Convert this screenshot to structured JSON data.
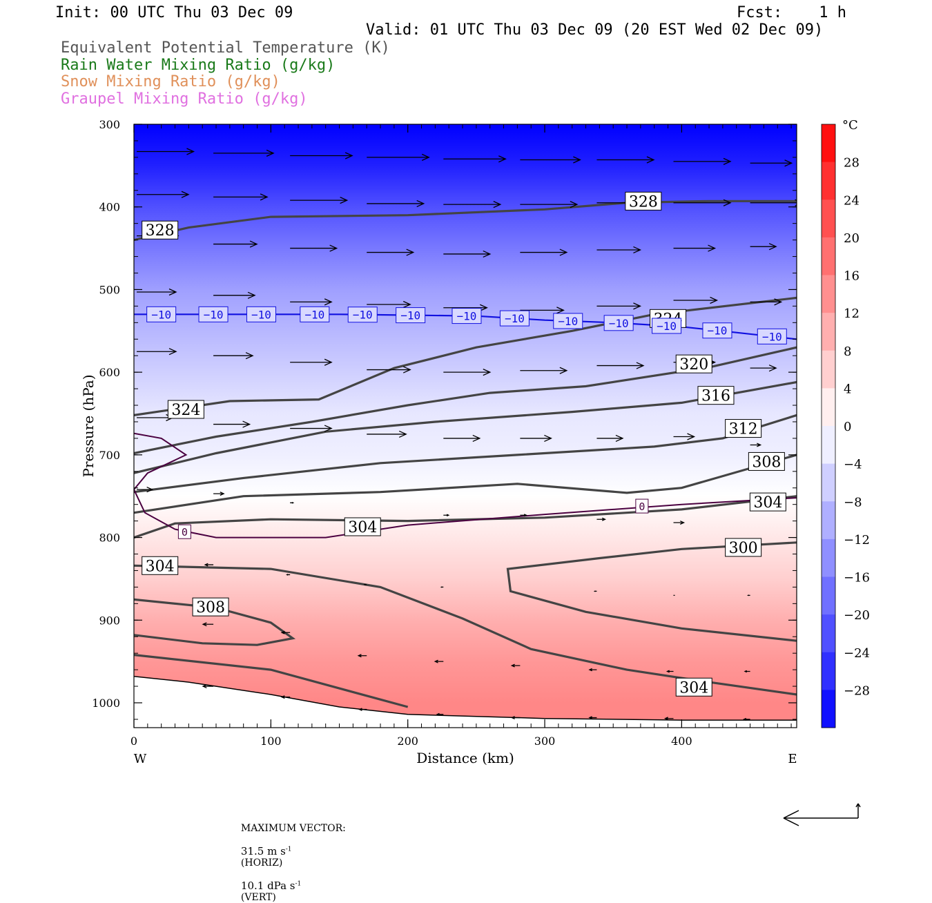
{
  "header": {
    "init": "Init: 00 UTC Thu 03 Dec 09",
    "fcst": "Fcst:    1 h",
    "valid": "Valid: 01 UTC Thu 03 Dec 09 (20 EST Wed 02 Dec 09)"
  },
  "legend": [
    {
      "label": "Equivalent Potential Temperature (K)",
      "color": "#555555"
    },
    {
      "label": "Rain Water Mixing Ratio (g/kg)",
      "color": "#1a7a1a"
    },
    {
      "label": "Snow Mixing Ratio (g/kg)",
      "color": "#e0905a"
    },
    {
      "label": "Graupel Mixing Ratio (g/kg)",
      "color": "#e070e0"
    }
  ],
  "chart_data": {
    "type": "cross-section",
    "xlabel": "Distance (km)",
    "ylabel": "Pressure (hPa)",
    "xlim": [
      0,
      484
    ],
    "ylim": [
      1030,
      300
    ],
    "x_ticks": [
      0,
      100,
      200,
      300,
      400
    ],
    "y_ticks": [
      300,
      400,
      500,
      600,
      700,
      800,
      900,
      1000
    ],
    "x_ends": {
      "left": "W",
      "right": "E"
    },
    "colorbar": {
      "unit": "°C",
      "range": [
        -32,
        32
      ],
      "labels": [
        28,
        24,
        20,
        16,
        12,
        8,
        4,
        0,
        -4,
        -8,
        -12,
        -16,
        -20,
        -24,
        -28
      ]
    },
    "temperature_field_profile": [
      {
        "p": 300,
        "t": -32
      },
      {
        "p": 350,
        "t": -28
      },
      {
        "p": 400,
        "t": -22
      },
      {
        "p": 450,
        "t": -17
      },
      {
        "p": 500,
        "t": -12
      },
      {
        "p": 550,
        "t": -9
      },
      {
        "p": 600,
        "t": -6
      },
      {
        "p": 650,
        "t": -3
      },
      {
        "p": 700,
        "t": -2
      },
      {
        "p": 750,
        "t": 0
      },
      {
        "p": 800,
        "t": 3
      },
      {
        "p": 850,
        "t": 6
      },
      {
        "p": 900,
        "t": 10
      },
      {
        "p": 950,
        "t": 13
      },
      {
        "p": 1000,
        "t": 15
      }
    ],
    "theta_e_contours": [
      {
        "value": 328,
        "points": [
          [
            0,
            440
          ],
          [
            40,
            425
          ],
          [
            100,
            412
          ],
          [
            200,
            410
          ],
          [
            300,
            403
          ],
          [
            360,
            395
          ],
          [
            420,
            393
          ],
          [
            484,
            393
          ]
        ]
      },
      {
        "value": 324,
        "points": [
          [
            0,
            652
          ],
          [
            70,
            635
          ],
          [
            135,
            633
          ],
          [
            190,
            595
          ],
          [
            250,
            570
          ],
          [
            320,
            550
          ],
          [
            380,
            530
          ],
          [
            484,
            510
          ]
        ]
      },
      {
        "value": 320,
        "points": [
          [
            0,
            698
          ],
          [
            60,
            678
          ],
          [
            130,
            660
          ],
          [
            200,
            640
          ],
          [
            260,
            625
          ],
          [
            330,
            617
          ],
          [
            420,
            594
          ],
          [
            484,
            570
          ]
        ]
      },
      {
        "value": 316,
        "points": [
          [
            0,
            722
          ],
          [
            60,
            698
          ],
          [
            140,
            672
          ],
          [
            220,
            660
          ],
          [
            320,
            648
          ],
          [
            400,
            637
          ],
          [
            484,
            612
          ]
        ]
      },
      {
        "value": 312,
        "points": [
          [
            0,
            745
          ],
          [
            80,
            728
          ],
          [
            180,
            710
          ],
          [
            280,
            700
          ],
          [
            380,
            690
          ],
          [
            430,
            680
          ],
          [
            484,
            652
          ]
        ]
      },
      {
        "value": 308,
        "points": [
          [
            0,
            770
          ],
          [
            80,
            750
          ],
          [
            180,
            745
          ],
          [
            280,
            735
          ],
          [
            360,
            746
          ],
          [
            400,
            740
          ],
          [
            484,
            700
          ]
        ]
      },
      {
        "value": 304,
        "points": [
          [
            0,
            800
          ],
          [
            30,
            783
          ],
          [
            100,
            778
          ],
          [
            200,
            780
          ],
          [
            300,
            776
          ],
          [
            400,
            766
          ],
          [
            484,
            750
          ]
        ]
      },
      {
        "value": 304,
        "points": [
          [
            0,
            834
          ],
          [
            100,
            838
          ],
          [
            180,
            860
          ],
          [
            240,
            898
          ],
          [
            290,
            935
          ],
          [
            360,
            960
          ],
          [
            420,
            975
          ],
          [
            484,
            990
          ]
        ]
      },
      {
        "value": 300,
        "points": [
          [
            484,
            806
          ],
          [
            400,
            814
          ],
          [
            340,
            825
          ],
          [
            273,
            838
          ],
          [
            275,
            865
          ],
          [
            330,
            890
          ],
          [
            400,
            910
          ],
          [
            484,
            925
          ]
        ]
      },
      {
        "value": 308,
        "points": [
          [
            0,
            875
          ],
          [
            60,
            885
          ],
          [
            100,
            903
          ],
          [
            116,
            922
          ],
          [
            90,
            930
          ],
          [
            50,
            928
          ],
          [
            0,
            918
          ]
        ]
      },
      {
        "value": 312,
        "points": [
          [
            0,
            942
          ],
          [
            100,
            960
          ],
          [
            200,
            1005
          ]
        ]
      }
    ],
    "theta_e_labels": [
      {
        "text": "328",
        "x": 19,
        "p": 428
      },
      {
        "text": "328",
        "x": 372,
        "p": 393
      },
      {
        "text": "324",
        "x": 38,
        "p": 645
      },
      {
        "text": "324",
        "x": 390,
        "p": 535
      },
      {
        "text": "320",
        "x": 409,
        "p": 590
      },
      {
        "text": "316",
        "x": 425,
        "p": 628
      },
      {
        "text": "312",
        "x": 445,
        "p": 668
      },
      {
        "text": "308",
        "x": 462,
        "p": 708
      },
      {
        "text": "304",
        "x": 463,
        "p": 757
      },
      {
        "text": "304",
        "x": 167,
        "p": 787
      },
      {
        "text": "304",
        "x": 19,
        "p": 834
      },
      {
        "text": "308",
        "x": 56,
        "p": 884
      },
      {
        "text": "300",
        "x": 445,
        "p": 812
      },
      {
        "text": "304",
        "x": 409,
        "p": 981
      }
    ],
    "isotherm_minus10": {
      "value": -10,
      "points": [
        [
          0,
          530
        ],
        [
          150,
          530
        ],
        [
          250,
          532
        ],
        [
          300,
          537
        ],
        [
          350,
          540
        ],
        [
          400,
          545
        ],
        [
          440,
          552
        ],
        [
          484,
          560
        ]
      ],
      "labels": [
        20,
        58,
        93,
        132,
        167,
        202,
        243,
        278,
        317,
        354,
        389,
        426,
        466
      ]
    },
    "isotherm_zero": {
      "value": 0,
      "points": [
        [
          0,
          742
        ],
        [
          10,
          722
        ],
        [
          38,
          700
        ],
        [
          20,
          680
        ],
        [
          0,
          674
        ]
      ],
      "points2": [
        [
          0,
          742
        ],
        [
          8,
          770
        ],
        [
          30,
          790
        ],
        [
          60,
          800
        ],
        [
          140,
          800
        ],
        [
          200,
          785
        ],
        [
          300,
          772
        ],
        [
          400,
          760
        ],
        [
          484,
          752
        ]
      ],
      "labels": [
        {
          "x": 37,
          "p": 793
        },
        {
          "x": 371,
          "p": 762
        }
      ]
    },
    "surface_line": [
      [
        0,
        968
      ],
      [
        40,
        975
      ],
      [
        100,
        990
      ],
      [
        150,
        1005
      ],
      [
        200,
        1014
      ],
      [
        300,
        1019
      ],
      [
        400,
        1021
      ],
      [
        484,
        1021
      ]
    ],
    "vectors": [
      {
        "x": 0,
        "p": 333,
        "u": 55,
        "w": 0
      },
      {
        "x": 56,
        "p": 335,
        "u": 58,
        "w": 0
      },
      {
        "x": 112,
        "p": 338,
        "u": 60,
        "w": 0
      },
      {
        "x": 168,
        "p": 340,
        "u": 60,
        "w": 0
      },
      {
        "x": 224,
        "p": 342,
        "u": 60,
        "w": 0
      },
      {
        "x": 280,
        "p": 343,
        "u": 58,
        "w": 0
      },
      {
        "x": 336,
        "p": 343,
        "u": 55,
        "w": 0
      },
      {
        "x": 392,
        "p": 345,
        "u": 55,
        "w": 0
      },
      {
        "x": 448,
        "p": 347,
        "u": 40,
        "w": 0
      },
      {
        "x": 0,
        "p": 385,
        "u": 50,
        "w": 0
      },
      {
        "x": 56,
        "p": 388,
        "u": 52,
        "w": 0
      },
      {
        "x": 112,
        "p": 392,
        "u": 55,
        "w": 0
      },
      {
        "x": 168,
        "p": 396,
        "u": 55,
        "w": 0
      },
      {
        "x": 224,
        "p": 397,
        "u": 55,
        "w": 0
      },
      {
        "x": 280,
        "p": 397,
        "u": 55,
        "w": 0
      },
      {
        "x": 336,
        "p": 395,
        "u": 55,
        "w": 0
      },
      {
        "x": 392,
        "p": 395,
        "u": 55,
        "w": 0
      },
      {
        "x": 448,
        "p": 395,
        "u": 50,
        "w": 0
      },
      {
        "x": 0,
        "p": 435,
        "u": 40,
        "w": 0
      },
      {
        "x": 56,
        "p": 445,
        "u": 42,
        "w": 0
      },
      {
        "x": 112,
        "p": 450,
        "u": 45,
        "w": 0
      },
      {
        "x": 168,
        "p": 455,
        "u": 45,
        "w": 0
      },
      {
        "x": 224,
        "p": 457,
        "u": 45,
        "w": 0
      },
      {
        "x": 280,
        "p": 455,
        "u": 45,
        "w": 0
      },
      {
        "x": 336,
        "p": 452,
        "u": 42,
        "w": 0
      },
      {
        "x": 392,
        "p": 450,
        "u": 40,
        "w": 0
      },
      {
        "x": 448,
        "p": 448,
        "u": 25,
        "w": 0
      },
      {
        "x": 0,
        "p": 503,
        "u": 38,
        "w": 0
      },
      {
        "x": 56,
        "p": 507,
        "u": 40,
        "w": 0
      },
      {
        "x": 112,
        "p": 515,
        "u": 40,
        "w": 0
      },
      {
        "x": 168,
        "p": 518,
        "u": 42,
        "w": 0
      },
      {
        "x": 224,
        "p": 522,
        "u": 42,
        "w": 0
      },
      {
        "x": 280,
        "p": 525,
        "u": 42,
        "w": 0
      },
      {
        "x": 336,
        "p": 520,
        "u": 42,
        "w": 0
      },
      {
        "x": 392,
        "p": 513,
        "u": 42,
        "w": 0
      },
      {
        "x": 448,
        "p": 515,
        "u": 30,
        "w": 0
      },
      {
        "x": 0,
        "p": 575,
        "u": 38,
        "w": 0
      },
      {
        "x": 56,
        "p": 580,
        "u": 38,
        "w": 0
      },
      {
        "x": 112,
        "p": 588,
        "u": 40,
        "w": 0
      },
      {
        "x": 168,
        "p": 597,
        "u": 42,
        "w": 0
      },
      {
        "x": 224,
        "p": 600,
        "u": 45,
        "w": 0
      },
      {
        "x": 280,
        "p": 598,
        "u": 45,
        "w": 0
      },
      {
        "x": 336,
        "p": 592,
        "u": 45,
        "w": 0
      },
      {
        "x": 392,
        "p": 588,
        "u": 40,
        "w": 0
      },
      {
        "x": 448,
        "p": 595,
        "u": 25,
        "w": 0
      },
      {
        "x": 0,
        "p": 655,
        "u": 35,
        "w": 0
      },
      {
        "x": 56,
        "p": 663,
        "u": 35,
        "w": 0
      },
      {
        "x": 112,
        "p": 668,
        "u": 40,
        "w": 0
      },
      {
        "x": 168,
        "p": 675,
        "u": 38,
        "w": 0
      },
      {
        "x": 224,
        "p": 680,
        "u": 35,
        "w": 0
      },
      {
        "x": 280,
        "p": 680,
        "u": 30,
        "w": 0
      },
      {
        "x": 336,
        "p": 680,
        "u": 25,
        "w": 0
      },
      {
        "x": 392,
        "p": 678,
        "u": 20,
        "w": 0
      },
      {
        "x": 448,
        "p": 688,
        "u": 10,
        "w": 0
      },
      {
        "x": 0,
        "p": 742,
        "u": 15,
        "w": 0
      },
      {
        "x": 56,
        "p": 747,
        "u": 10,
        "w": 0
      },
      {
        "x": 112,
        "p": 758,
        "u": 3,
        "w": 0
      },
      {
        "x": 224,
        "p": 773,
        "u": 5,
        "w": 0
      },
      {
        "x": 280,
        "p": 773,
        "u": 6,
        "w": 0
      },
      {
        "x": 336,
        "p": 778,
        "u": 8,
        "w": 0
      },
      {
        "x": 392,
        "p": 782,
        "u": 10,
        "w": 0
      },
      {
        "x": 56,
        "p": 833,
        "u": -8,
        "w": 0
      },
      {
        "x": 112,
        "p": 845,
        "u": -3,
        "w": 0
      },
      {
        "x": 168,
        "p": 857,
        "u": -2,
        "w": 0
      },
      {
        "x": 224,
        "p": 860,
        "u": -2,
        "w": 0
      },
      {
        "x": 336,
        "p": 865,
        "u": -2,
        "w": 0
      },
      {
        "x": 392,
        "p": 870,
        "u": -1,
        "w": 0
      },
      {
        "x": 448,
        "p": 870,
        "u": -2,
        "w": 0
      },
      {
        "x": 56,
        "p": 905,
        "u": -10,
        "w": 0
      },
      {
        "x": 112,
        "p": 915,
        "u": -8,
        "w": 0
      },
      {
        "x": 168,
        "p": 943,
        "u": -8,
        "w": 0
      },
      {
        "x": 224,
        "p": 950,
        "u": -8,
        "w": 0
      },
      {
        "x": 280,
        "p": 955,
        "u": -8,
        "w": 0
      },
      {
        "x": 336,
        "p": 960,
        "u": -7,
        "w": 0
      },
      {
        "x": 392,
        "p": 962,
        "u": -6,
        "w": 0
      },
      {
        "x": 448,
        "p": 962,
        "u": -5,
        "w": 0
      },
      {
        "x": 56,
        "p": 980,
        "u": -10,
        "w": 0
      },
      {
        "x": 112,
        "p": 993,
        "u": -8,
        "w": 0
      },
      {
        "x": 168,
        "p": 1008,
        "u": -7,
        "w": 0
      },
      {
        "x": 224,
        "p": 1014,
        "u": -6,
        "w": 0
      },
      {
        "x": 280,
        "p": 1018,
        "u": -8,
        "w": 0
      },
      {
        "x": 336,
        "p": 1018,
        "u": -7,
        "w": 0
      },
      {
        "x": 392,
        "p": 1019,
        "u": -8,
        "w": 0
      },
      {
        "x": 448,
        "p": 1020,
        "u": -6,
        "w": 0
      }
    ]
  },
  "footer": {
    "max_vector_label": "MAXIMUM VECTOR:",
    "horiz_value": "31.5 m s",
    "horiz_exp": "-1",
    "horiz_label": "(HORIZ)",
    "vert_value": "10.1 dPa s",
    "vert_exp": "-1",
    "vert_label": "(VERT)"
  }
}
